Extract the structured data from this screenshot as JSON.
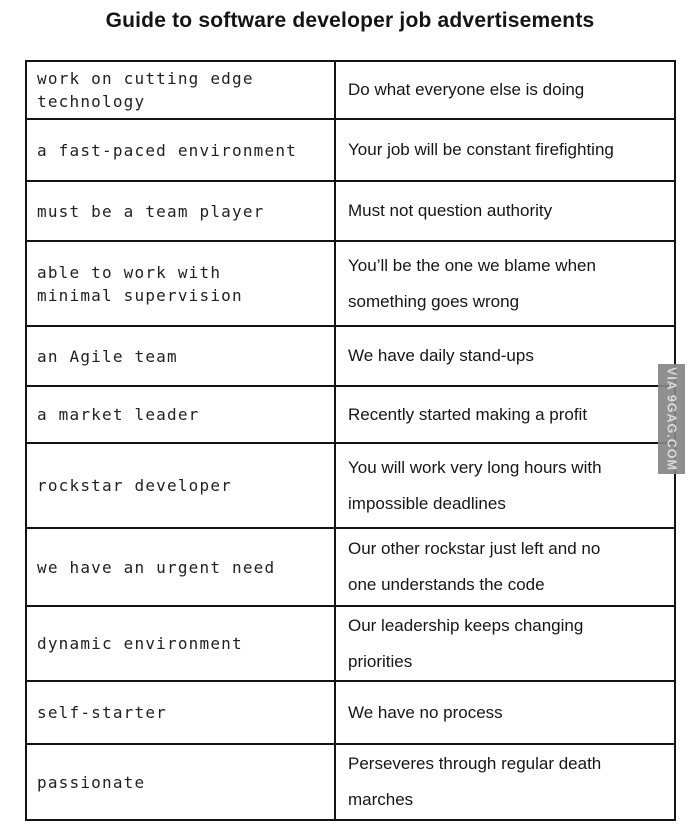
{
  "page": {
    "title": "Guide to software developer job advertisements"
  },
  "watermark": {
    "text": "VIA 9GAG.COM"
  },
  "table": {
    "rows": [
      {
        "ad": "work on cutting edge\ntechnology",
        "meaning": "Do what everyone else is doing"
      },
      {
        "ad": "a fast-paced environment",
        "meaning": "Your job will be constant firefighting"
      },
      {
        "ad": "must be a team player",
        "meaning": "Must not question authority"
      },
      {
        "ad": "able to work with\nminimal supervision",
        "meaning": "You’ll be the one we blame when\nsomething goes wrong"
      },
      {
        "ad": "an Agile team",
        "meaning": "We have daily stand-ups"
      },
      {
        "ad": "a market leader",
        "meaning": "Recently started making a profit"
      },
      {
        "ad": "rockstar developer",
        "meaning": "You will work very long hours with\nimpossible deadlines"
      },
      {
        "ad": "we have an urgent need",
        "meaning": "Our other rockstar just left and no\none understands the code"
      },
      {
        "ad": "dynamic environment",
        "meaning": "Our leadership keeps changing\npriorities"
      },
      {
        "ad": "self-starter",
        "meaning": "We have no process"
      },
      {
        "ad": "passionate",
        "meaning": "Perseveres through regular death\nmarches"
      }
    ]
  },
  "colors": {
    "background": "#ffffff",
    "text": "#1a1a1a",
    "border": "#141414",
    "watermark_background": "#868686",
    "watermark_text": "#d9d9d9"
  }
}
